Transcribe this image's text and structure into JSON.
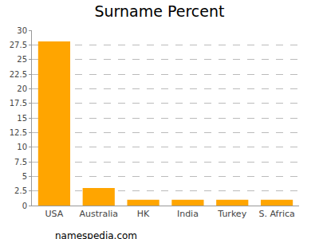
{
  "chart_data": {
    "type": "bar",
    "title": "Surname Percent",
    "categories": [
      "USA",
      "Australia",
      "HK",
      "India",
      "Turkey",
      "S. Africa"
    ],
    "values": [
      28.1,
      3.0,
      1.0,
      1.0,
      1.0,
      1.0
    ],
    "color": "#ffa500",
    "ylim": [
      0,
      30
    ],
    "yticks": [
      0,
      2.5,
      5,
      7.5,
      10,
      12.5,
      15,
      17.5,
      20,
      22.5,
      25,
      27.5,
      30
    ],
    "grid": true,
    "annotation": "namespedia.com"
  }
}
